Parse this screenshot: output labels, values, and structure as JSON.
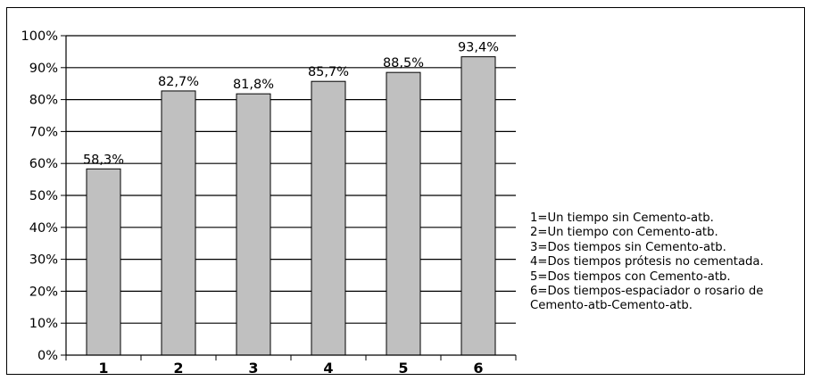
{
  "chart_data": {
    "type": "bar",
    "categories": [
      "1",
      "2",
      "3",
      "4",
      "5",
      "6"
    ],
    "values": [
      58.3,
      82.7,
      81.8,
      85.7,
      88.5,
      93.4
    ],
    "data_labels": [
      "58,3%",
      "82,7%",
      "81,8%",
      "85,7%",
      "88,5%",
      "93,4%"
    ],
    "yticks": [
      "0%",
      "10%",
      "20%",
      "30%",
      "40%",
      "50%",
      "60%",
      "70%",
      "80%",
      "90%",
      "100%"
    ],
    "ylim": [
      0,
      100
    ],
    "grid": true,
    "bar_color": "#c0c0c0",
    "legend_placement": "right",
    "legend": [
      "1=Un tiempo sin Cemento-atb.",
      "2=Un tiempo con Cemento-atb.",
      "3=Dos tiempos sin Cemento-atb.",
      "4=Dos tiempos prótesis no cementada.",
      "5=Dos tiempos con Cemento-atb.",
      "6=Dos tiempos-espaciador o rosario de",
      "Cemento-atb-Cemento-atb."
    ]
  }
}
